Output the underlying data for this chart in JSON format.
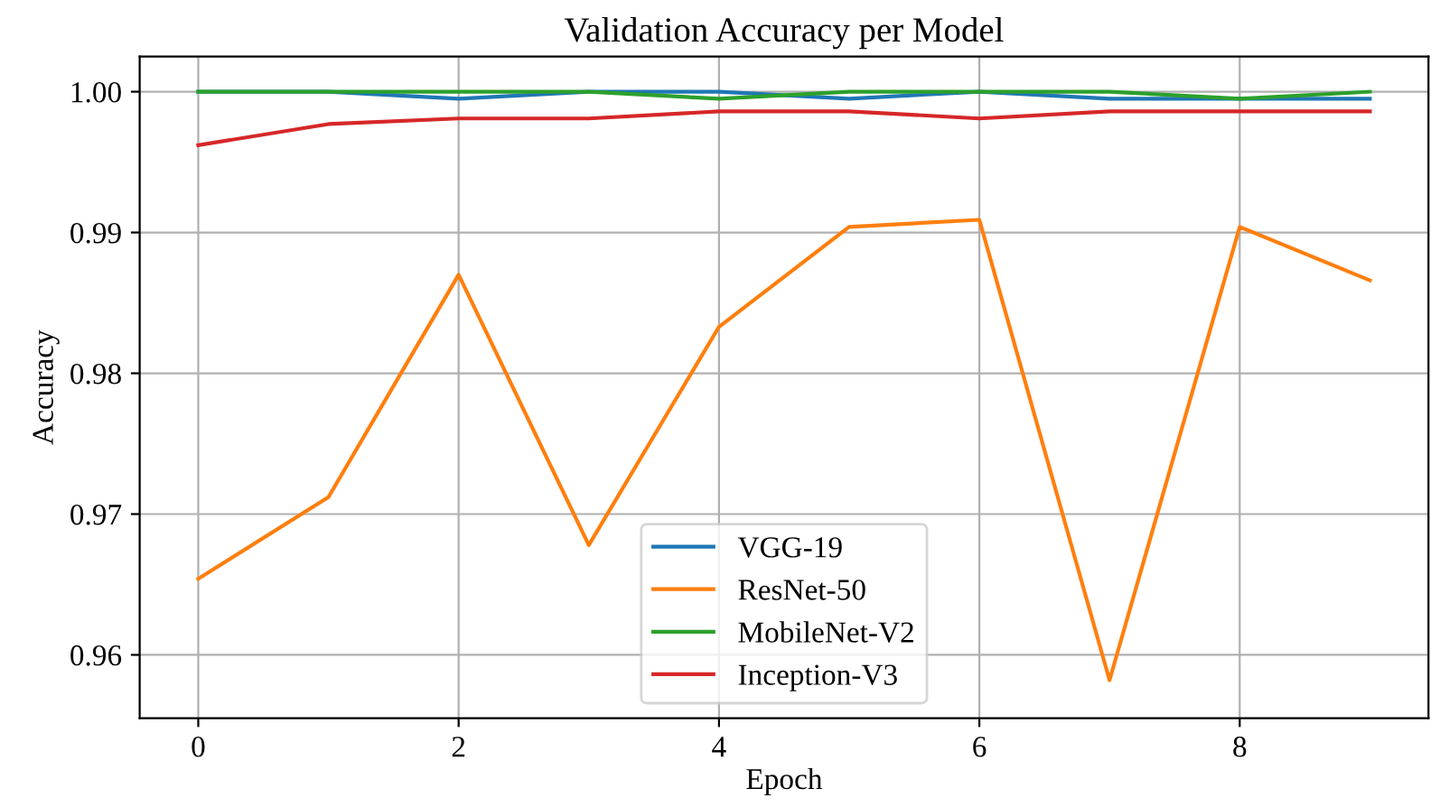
{
  "chart_data": {
    "type": "line",
    "title": "Validation Accuracy per Model",
    "xlabel": "Epoch",
    "ylabel": "Accuracy",
    "x": [
      0,
      1,
      2,
      3,
      4,
      5,
      6,
      7,
      8,
      9
    ],
    "series": [
      {
        "name": "VGG-19",
        "color": "#1f77b4",
        "values": [
          1.0,
          1.0,
          0.9995,
          1.0,
          1.0,
          0.9995,
          1.0,
          0.9995,
          0.9995,
          0.9995
        ]
      },
      {
        "name": "ResNet-50",
        "color": "#ff7f0e",
        "values": [
          0.9654,
          0.9712,
          0.987,
          0.9678,
          0.9833,
          0.9904,
          0.9909,
          0.9582,
          0.9904,
          0.9866
        ]
      },
      {
        "name": "MobileNet-V2",
        "color": "#2ca02c",
        "values": [
          1.0,
          1.0,
          1.0,
          1.0,
          0.9995,
          1.0,
          1.0,
          1.0,
          0.9995,
          1.0
        ]
      },
      {
        "name": "Inception-V3",
        "color": "#d62728",
        "values": [
          0.9962,
          0.9977,
          0.9981,
          0.9981,
          0.9986,
          0.9986,
          0.9981,
          0.9986,
          0.9986,
          0.9986
        ]
      }
    ],
    "xlim": [
      -0.45,
      9.45
    ],
    "ylim": [
      0.9555,
      1.0025
    ],
    "xticks": [
      0,
      2,
      4,
      6,
      8
    ],
    "yticks": [
      {
        "value": 0.96,
        "label": "0.96"
      },
      {
        "value": 0.97,
        "label": "0.97"
      },
      {
        "value": 0.98,
        "label": "0.98"
      },
      {
        "value": 0.99,
        "label": "0.99"
      },
      {
        "value": 1.0,
        "label": "1.00"
      }
    ],
    "grid": true,
    "legend": "bottom",
    "marker": "none",
    "line_style": "solid"
  }
}
